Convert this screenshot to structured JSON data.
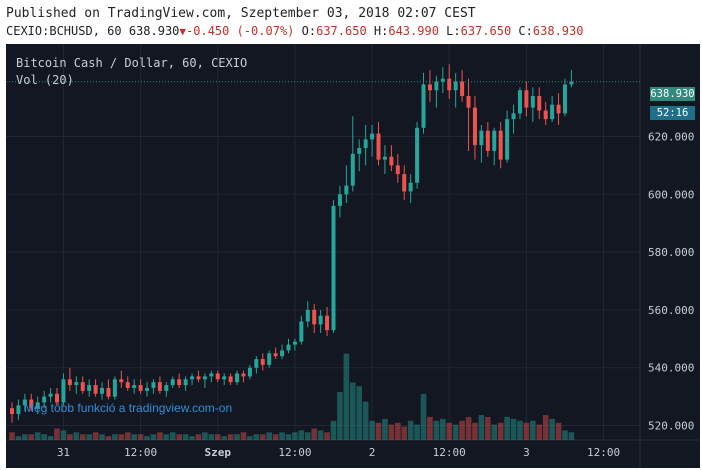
{
  "header": {
    "published": "Published on TradingView.com, Szeptember 03, 2018 02:07 CEST",
    "symbol": "CEXIO:BCHUSD, 60",
    "last": "638.930",
    "change": "-0.450 (-0.07%)",
    "open": "637.650",
    "high": "643.990",
    "low": "637.650",
    "close": "638.930"
  },
  "legend": {
    "title": "Bitcoin Cash / Dollar, 60, CEXIO",
    "volume": "Vol (20)"
  },
  "promo": "Még több funkció a tradingview.com-on",
  "price_badge": "638.930",
  "timer_badge": "52:16",
  "colors": {
    "background": "#131722",
    "up": "#26a69a",
    "down": "#ef5350",
    "grid": "#232735",
    "text": "#c9cdd6"
  },
  "chart_data": {
    "type": "candlestick",
    "title": "Bitcoin Cash / Dollar, 60, CEXIO",
    "y_ticks": [
      "620.000",
      "600.000",
      "580.000",
      "560.000",
      "540.000",
      "520.000"
    ],
    "ylim": [
      515,
      652
    ],
    "x_ticks": [
      {
        "label": "31",
        "i": 8
      },
      {
        "label": "12:00",
        "i": 20
      },
      {
        "label": "Szep",
        "i": 32
      },
      {
        "label": "12:00",
        "i": 44
      },
      {
        "label": "2",
        "i": 56
      },
      {
        "label": "12:00",
        "i": 68
      },
      {
        "label": "3",
        "i": 80
      },
      {
        "label": "12:00",
        "i": 92
      }
    ],
    "candles": [
      {
        "o": 526,
        "h": 528,
        "l": 521,
        "c": 524
      },
      {
        "o": 524,
        "h": 529,
        "l": 522,
        "c": 527
      },
      {
        "o": 527,
        "h": 531,
        "l": 525,
        "c": 529
      },
      {
        "o": 529,
        "h": 531,
        "l": 525,
        "c": 526
      },
      {
        "o": 526,
        "h": 530,
        "l": 524,
        "c": 528
      },
      {
        "o": 528,
        "h": 532,
        "l": 526,
        "c": 530
      },
      {
        "o": 530,
        "h": 533,
        "l": 528,
        "c": 531
      },
      {
        "o": 531,
        "h": 533,
        "l": 527,
        "c": 528
      },
      {
        "o": 528,
        "h": 538,
        "l": 527,
        "c": 536
      },
      {
        "o": 536,
        "h": 540,
        "l": 532,
        "c": 534
      },
      {
        "o": 534,
        "h": 537,
        "l": 531,
        "c": 535
      },
      {
        "o": 535,
        "h": 537,
        "l": 531,
        "c": 532
      },
      {
        "o": 532,
        "h": 536,
        "l": 530,
        "c": 534
      },
      {
        "o": 534,
        "h": 536,
        "l": 530,
        "c": 531
      },
      {
        "o": 531,
        "h": 535,
        "l": 529,
        "c": 533
      },
      {
        "o": 533,
        "h": 536,
        "l": 529,
        "c": 530
      },
      {
        "o": 530,
        "h": 537,
        "l": 529,
        "c": 536
      },
      {
        "o": 536,
        "h": 539,
        "l": 533,
        "c": 535
      },
      {
        "o": 535,
        "h": 537,
        "l": 532,
        "c": 533
      },
      {
        "o": 533,
        "h": 536,
        "l": 531,
        "c": 534
      },
      {
        "o": 534,
        "h": 536,
        "l": 531,
        "c": 532
      },
      {
        "o": 532,
        "h": 535,
        "l": 530,
        "c": 533
      },
      {
        "o": 533,
        "h": 536,
        "l": 531,
        "c": 535
      },
      {
        "o": 535,
        "h": 537,
        "l": 531,
        "c": 532
      },
      {
        "o": 532,
        "h": 535,
        "l": 530,
        "c": 534
      },
      {
        "o": 534,
        "h": 537,
        "l": 533,
        "c": 536
      },
      {
        "o": 536,
        "h": 538,
        "l": 533,
        "c": 534
      },
      {
        "o": 534,
        "h": 537,
        "l": 532,
        "c": 536
      },
      {
        "o": 536,
        "h": 538,
        "l": 534,
        "c": 537
      },
      {
        "o": 537,
        "h": 539,
        "l": 535,
        "c": 536
      },
      {
        "o": 536,
        "h": 538,
        "l": 533,
        "c": 537
      },
      {
        "o": 537,
        "h": 539,
        "l": 535,
        "c": 538
      },
      {
        "o": 538,
        "h": 539,
        "l": 535,
        "c": 536
      },
      {
        "o": 536,
        "h": 538,
        "l": 534,
        "c": 537
      },
      {
        "o": 537,
        "h": 538,
        "l": 534,
        "c": 535
      },
      {
        "o": 535,
        "h": 539,
        "l": 534,
        "c": 538
      },
      {
        "o": 538,
        "h": 539,
        "l": 535,
        "c": 537
      },
      {
        "o": 537,
        "h": 541,
        "l": 536,
        "c": 540
      },
      {
        "o": 540,
        "h": 544,
        "l": 538,
        "c": 543
      },
      {
        "o": 543,
        "h": 545,
        "l": 539,
        "c": 541
      },
      {
        "o": 541,
        "h": 546,
        "l": 540,
        "c": 545
      },
      {
        "o": 545,
        "h": 547,
        "l": 543,
        "c": 544
      },
      {
        "o": 544,
        "h": 548,
        "l": 543,
        "c": 546
      },
      {
        "o": 546,
        "h": 550,
        "l": 545,
        "c": 548
      },
      {
        "o": 548,
        "h": 550,
        "l": 546,
        "c": 549
      },
      {
        "o": 549,
        "h": 558,
        "l": 548,
        "c": 556
      },
      {
        "o": 556,
        "h": 563,
        "l": 554,
        "c": 560
      },
      {
        "o": 560,
        "h": 562,
        "l": 552,
        "c": 555
      },
      {
        "o": 555,
        "h": 560,
        "l": 552,
        "c": 558
      },
      {
        "o": 558,
        "h": 561,
        "l": 551,
        "c": 553
      },
      {
        "o": 553,
        "h": 598,
        "l": 552,
        "c": 596
      },
      {
        "o": 596,
        "h": 603,
        "l": 592,
        "c": 600
      },
      {
        "o": 600,
        "h": 610,
        "l": 597,
        "c": 603
      },
      {
        "o": 603,
        "h": 627,
        "l": 601,
        "c": 614
      },
      {
        "o": 614,
        "h": 619,
        "l": 608,
        "c": 616
      },
      {
        "o": 616,
        "h": 624,
        "l": 610,
        "c": 619
      },
      {
        "o": 619,
        "h": 624,
        "l": 613,
        "c": 621
      },
      {
        "o": 621,
        "h": 625,
        "l": 610,
        "c": 612
      },
      {
        "o": 612,
        "h": 617,
        "l": 607,
        "c": 613
      },
      {
        "o": 613,
        "h": 617,
        "l": 608,
        "c": 610
      },
      {
        "o": 610,
        "h": 614,
        "l": 604,
        "c": 607
      },
      {
        "o": 607,
        "h": 610,
        "l": 598,
        "c": 601
      },
      {
        "o": 601,
        "h": 607,
        "l": 597,
        "c": 604
      },
      {
        "o": 604,
        "h": 625,
        "l": 602,
        "c": 623
      },
      {
        "o": 623,
        "h": 642,
        "l": 621,
        "c": 638
      },
      {
        "o": 638,
        "h": 643,
        "l": 632,
        "c": 636
      },
      {
        "o": 636,
        "h": 641,
        "l": 630,
        "c": 639
      },
      {
        "o": 639,
        "h": 644,
        "l": 635,
        "c": 640
      },
      {
        "o": 640,
        "h": 645,
        "l": 633,
        "c": 636
      },
      {
        "o": 636,
        "h": 642,
        "l": 630,
        "c": 639
      },
      {
        "o": 639,
        "h": 643,
        "l": 632,
        "c": 634
      },
      {
        "o": 634,
        "h": 640,
        "l": 615,
        "c": 630
      },
      {
        "o": 630,
        "h": 634,
        "l": 612,
        "c": 617
      },
      {
        "o": 617,
        "h": 624,
        "l": 611,
        "c": 622
      },
      {
        "o": 622,
        "h": 625,
        "l": 613,
        "c": 615
      },
      {
        "o": 615,
        "h": 623,
        "l": 610,
        "c": 622
      },
      {
        "o": 622,
        "h": 625,
        "l": 609,
        "c": 612
      },
      {
        "o": 612,
        "h": 629,
        "l": 611,
        "c": 626
      },
      {
        "o": 626,
        "h": 631,
        "l": 621,
        "c": 628
      },
      {
        "o": 628,
        "h": 637,
        "l": 626,
        "c": 636
      },
      {
        "o": 636,
        "h": 639,
        "l": 627,
        "c": 630
      },
      {
        "o": 630,
        "h": 637,
        "l": 625,
        "c": 634
      },
      {
        "o": 634,
        "h": 637,
        "l": 626,
        "c": 629
      },
      {
        "o": 629,
        "h": 632,
        "l": 624,
        "c": 626
      },
      {
        "o": 626,
        "h": 634,
        "l": 625,
        "c": 631
      },
      {
        "o": 631,
        "h": 635,
        "l": 624,
        "c": 628
      },
      {
        "o": 628,
        "h": 640,
        "l": 627,
        "c": 638
      },
      {
        "o": 638,
        "h": 643,
        "l": 637,
        "c": 639
      }
    ],
    "volume": [
      4,
      2,
      3,
      3,
      4,
      3,
      2,
      6,
      5,
      3,
      4,
      3,
      3,
      4,
      3,
      2,
      3,
      3,
      4,
      3,
      3,
      2,
      3,
      4,
      3,
      4,
      3,
      3,
      2,
      3,
      4,
      3,
      3,
      2,
      3,
      3,
      4,
      2,
      3,
      3,
      4,
      3,
      4,
      3,
      4,
      5,
      4,
      6,
      5,
      4,
      10,
      25,
      45,
      30,
      28,
      20,
      10,
      9,
      11,
      8,
      9,
      7,
      10,
      8,
      24,
      12,
      10,
      11,
      9,
      8,
      10,
      12,
      9,
      13,
      12,
      8,
      9,
      12,
      11,
      10,
      9,
      10,
      8,
      13,
      11,
      9,
      5,
      4
    ],
    "volume_max": 50
  }
}
